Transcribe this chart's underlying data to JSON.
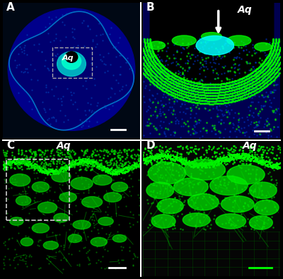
{
  "fig_width": 4.0,
  "fig_height": 3.94,
  "dpi": 100,
  "background_color": "#000000",
  "panel_labels": [
    "A",
    "B",
    "C",
    "D"
  ],
  "label_color": "#ffffff",
  "label_fontsize": 11,
  "Aq_label": "Aq",
  "Aq_fontsize": 10
}
